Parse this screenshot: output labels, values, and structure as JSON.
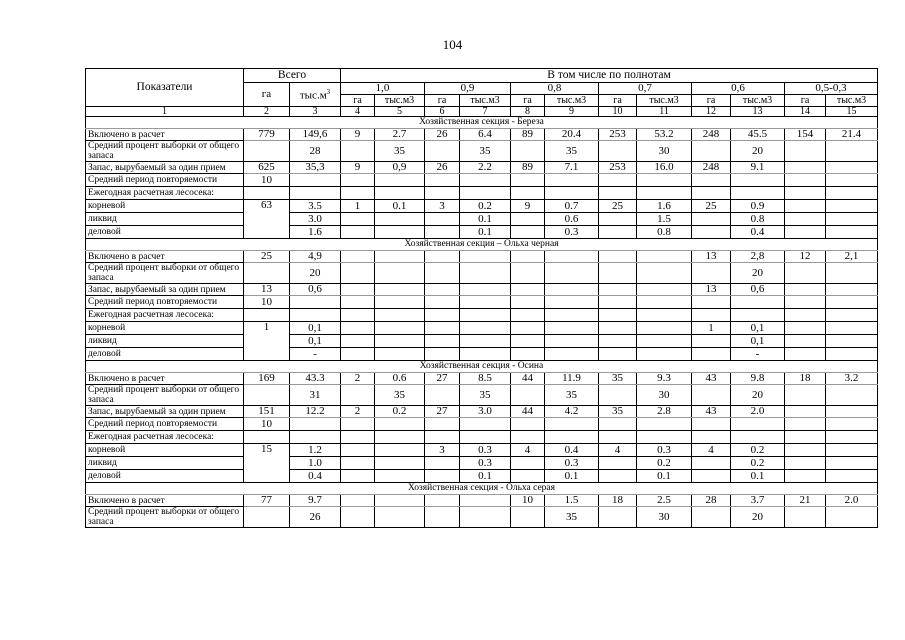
{
  "page_number": "104",
  "header": {
    "indicator": "Показатели",
    "total": "Всего",
    "by_density": "В том числе по полнотам",
    "ga": "га",
    "tys_m3_total": "тыс.м",
    "tys_m3_sup": "3",
    "tys_m3": "тыс.м3",
    "densities": [
      "1,0",
      "0,9",
      "0,8",
      "0,7",
      "0,6",
      "0,5-0,3"
    ],
    "column_numbers": [
      "1",
      "2",
      "3",
      "4",
      "5",
      "6",
      "7",
      "8",
      "9",
      "10",
      "11",
      "12",
      "13",
      "14",
      "15"
    ]
  },
  "row_labels": [
    "Включено в расчет",
    "Средний процент выборки от общего запаса",
    "Запас, вырубаемый за один прием",
    "Средний период повторяемости",
    "Ежегодная расчетная лесосека:",
    "корневой",
    "ликвид",
    "деловой"
  ],
  "sections": [
    {
      "title": "Хозяйственная секция - Береза",
      "rows": [
        [
          "779",
          "149,6",
          "9",
          "2.7",
          "26",
          "6.4",
          "89",
          "20.4",
          "253",
          "53.2",
          "248",
          "45.5",
          "154",
          "21.4"
        ],
        [
          "",
          "28",
          "",
          "35",
          "",
          "35",
          "",
          "35",
          "",
          "30",
          "",
          "20",
          "",
          ""
        ],
        [
          "625",
          "35,3",
          "9",
          "0,9",
          "26",
          "2.2",
          "89",
          "7.1",
          "253",
          "16.0",
          "248",
          "9.1",
          "",
          ""
        ],
        [
          "10",
          "",
          "",
          "",
          "",
          "",
          "",
          "",
          "",
          "",
          "",
          "",
          "",
          ""
        ],
        [
          "",
          "",
          "",
          "",
          "",
          "",
          "",
          "",
          "",
          "",
          "",
          "",
          "",
          ""
        ],
        [
          "63",
          "3.5",
          "1",
          "0.1",
          "3",
          "0.2",
          "9",
          "0.7",
          "25",
          "1.6",
          "25",
          "0.9",
          "",
          ""
        ],
        [
          "",
          "3.0",
          "",
          "",
          "",
          "0.1",
          "",
          "0.6",
          "",
          "1.5",
          "",
          "0.8",
          "",
          ""
        ],
        [
          "",
          "1.6",
          "",
          "",
          "",
          "0.1",
          "",
          "0.3",
          "",
          "0.8",
          "",
          "0.4",
          "",
          ""
        ]
      ]
    },
    {
      "title": "Хозяйственная секция – Ольха черная",
      "rows": [
        [
          "25",
          "4,9",
          "",
          "",
          "",
          "",
          "",
          "",
          "",
          "",
          "13",
          "2,8",
          "12",
          "2,1"
        ],
        [
          "",
          "20",
          "",
          "",
          "",
          "",
          "",
          "",
          "",
          "",
          "",
          "20",
          "",
          ""
        ],
        [
          "13",
          "0,6",
          "",
          "",
          "",
          "",
          "",
          "",
          "",
          "",
          "13",
          "0,6",
          "",
          ""
        ],
        [
          "10",
          "",
          "",
          "",
          "",
          "",
          "",
          "",
          "",
          "",
          "",
          "",
          "",
          ""
        ],
        [
          "",
          "",
          "",
          "",
          "",
          "",
          "",
          "",
          "",
          "",
          "",
          "",
          "",
          ""
        ],
        [
          "1",
          "0,1",
          "",
          "",
          "",
          "",
          "",
          "",
          "",
          "",
          "1",
          "0,1",
          "",
          ""
        ],
        [
          "",
          "0,1",
          "",
          "",
          "",
          "",
          "",
          "",
          "",
          "",
          "",
          "0,1",
          "",
          ""
        ],
        [
          "",
          "-",
          "",
          "",
          "",
          "",
          "",
          "",
          "",
          "",
          "",
          "-",
          "",
          ""
        ]
      ]
    },
    {
      "title": "Хозяйственная секция - Осина",
      "rows": [
        [
          "169",
          "43.3",
          "2",
          "0.6",
          "27",
          "8.5",
          "44",
          "11.9",
          "35",
          "9.3",
          "43",
          "9.8",
          "18",
          "3.2"
        ],
        [
          "",
          "31",
          "",
          "35",
          "",
          "35",
          "",
          "35",
          "",
          "30",
          "",
          "20",
          "",
          ""
        ],
        [
          "151",
          "12.2",
          "2",
          "0.2",
          "27",
          "3.0",
          "44",
          "4.2",
          "35",
          "2.8",
          "43",
          "2.0",
          "",
          ""
        ],
        [
          "10",
          "",
          "",
          "",
          "",
          "",
          "",
          "",
          "",
          "",
          "",
          "",
          "",
          ""
        ],
        [
          "",
          "",
          "",
          "",
          "",
          "",
          "",
          "",
          "",
          "",
          "",
          "",
          "",
          ""
        ],
        [
          "15",
          "1.2",
          "",
          "",
          "3",
          "0.3",
          "4",
          "0.4",
          "4",
          "0.3",
          "4",
          "0.2",
          "",
          ""
        ],
        [
          "",
          "1.0",
          "",
          "",
          "",
          "0.3",
          "",
          "0.3",
          "",
          "0.2",
          "",
          "0.2",
          "",
          ""
        ],
        [
          "",
          "0.4",
          "",
          "",
          "",
          "0.1",
          "",
          "0.1",
          "",
          "0.1",
          "",
          "0.1",
          "",
          ""
        ]
      ]
    },
    {
      "title": "Хозяйственная секция - Ольха серая",
      "rows": [
        [
          "77",
          "9.7",
          "",
          "",
          "",
          "",
          "10",
          "1.5",
          "18",
          "2.5",
          "28",
          "3.7",
          "21",
          "2.0"
        ],
        [
          "",
          "26",
          "",
          "",
          "",
          "",
          "",
          "35",
          "",
          "30",
          "",
          "20",
          "",
          ""
        ]
      ]
    }
  ]
}
